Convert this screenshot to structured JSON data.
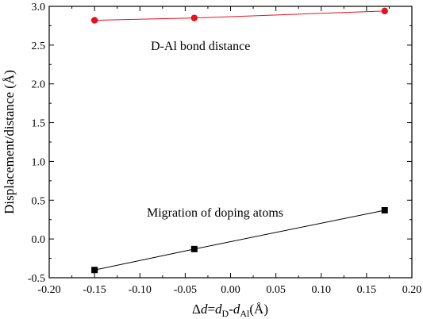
{
  "chart_data": {
    "type": "line",
    "ylabel": "Displacement/distance (Å)",
    "xlabel": {
      "delta": "Δ",
      "d1": "d",
      "eq": "=",
      "d2": "d",
      "sub_d": "D",
      "minus": "-",
      "d3": "d",
      "sub_al": "Al",
      "unit": "(Å)"
    },
    "xlim": [
      -0.2,
      0.2
    ],
    "ylim": [
      -0.5,
      3.0
    ],
    "xticks": [
      "-0.20",
      "-0.15",
      "-0.10",
      "-0.05",
      "0.00",
      "0.05",
      "0.10",
      "0.15",
      "0.20"
    ],
    "yticks": [
      "-0.5",
      "0.0",
      "0.5",
      "1.0",
      "1.5",
      "2.0",
      "2.5",
      "3.0"
    ],
    "grid": false,
    "series": [
      {
        "name": "D-Al bond distance",
        "color": "#e8101c",
        "marker": "circle",
        "x": [
          -0.15,
          -0.04,
          0.17
        ],
        "y": [
          2.82,
          2.85,
          2.94
        ]
      },
      {
        "name": "Migration of  doping atoms",
        "color": "#000000",
        "marker": "square",
        "x": [
          -0.15,
          -0.04,
          0.17
        ],
        "y": [
          -0.4,
          -0.13,
          0.37
        ]
      }
    ]
  }
}
